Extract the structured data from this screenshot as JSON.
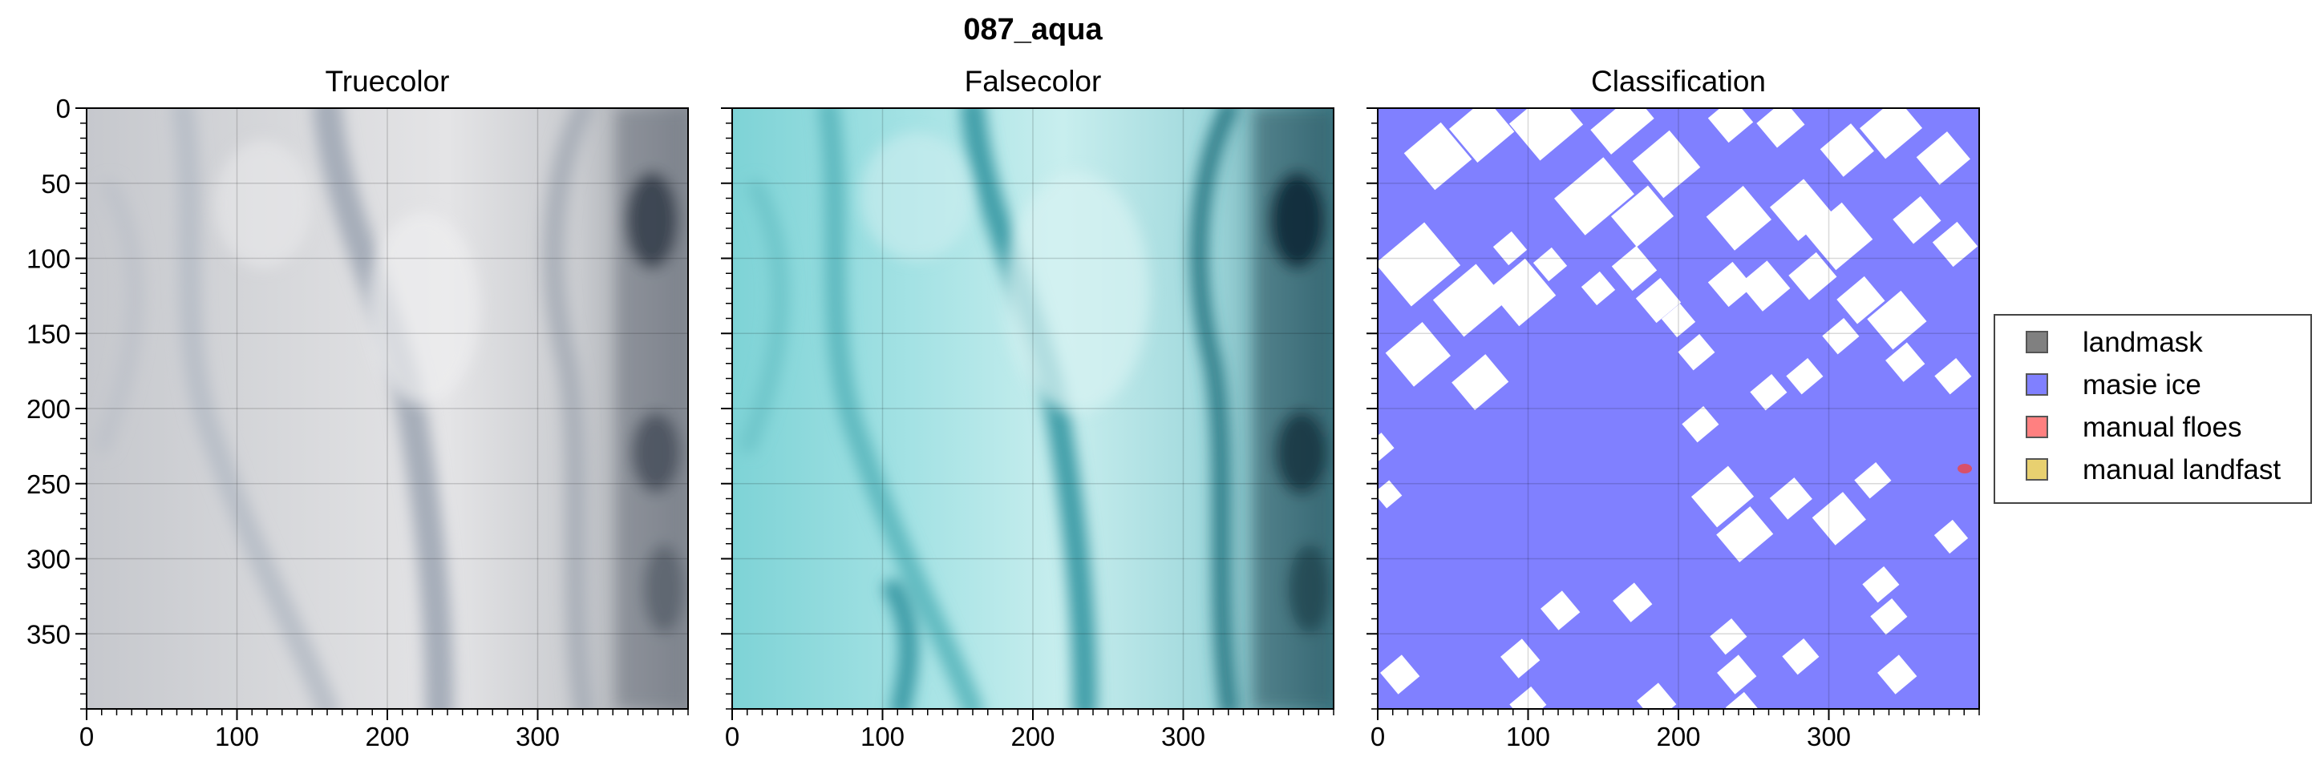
{
  "figure": {
    "suptitle": "087_aqua"
  },
  "chart_data": [
    {
      "type": "image",
      "title": "Truecolor",
      "xlim": [
        0,
        400
      ],
      "ylim": [
        400,
        0
      ],
      "xticks": [
        0,
        100,
        200,
        300
      ],
      "yticks": [
        0,
        50,
        100,
        150,
        200,
        250,
        300,
        350
      ],
      "grid": true
    },
    {
      "type": "image",
      "title": "Falsecolor",
      "xlim": [
        0,
        400
      ],
      "ylim": [
        400,
        0
      ],
      "xticks": [
        0,
        100,
        200,
        300
      ],
      "yticks": [
        0,
        50,
        100,
        150,
        200,
        250,
        300,
        350
      ],
      "grid": true
    },
    {
      "type": "heatmap",
      "title": "Classification",
      "xlim": [
        0,
        400
      ],
      "ylim": [
        400,
        0
      ],
      "xticks": [
        0,
        100,
        200,
        300
      ],
      "yticks": [
        0,
        50,
        100,
        150,
        200,
        250,
        300,
        350
      ],
      "grid": true,
      "legend_position": "right",
      "legend": [
        {
          "label": "landmask",
          "color": "#808080"
        },
        {
          "label": "masie ice",
          "color": "#8080ff"
        },
        {
          "label": "manual floes",
          "color": "#ff8080"
        },
        {
          "label": "manual landfast",
          "color": "#e8d070"
        }
      ]
    }
  ]
}
